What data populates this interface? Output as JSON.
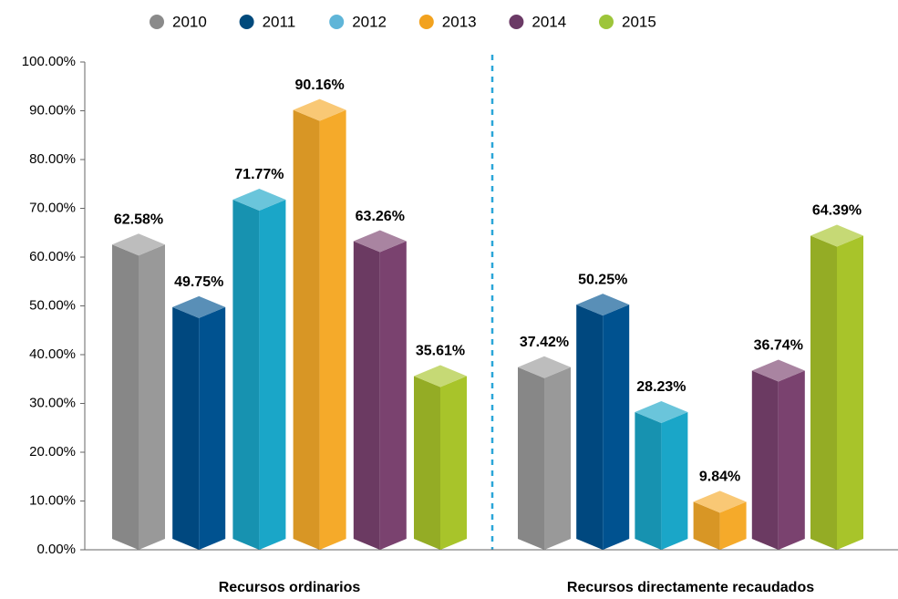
{
  "chart_data": {
    "type": "bar3d",
    "categories": [
      "Recursos ordinarios",
      "Recursos directamente recaudados"
    ],
    "series": [
      {
        "name": "2010",
        "color": "#999999",
        "values": [
          62.58,
          37.42
        ],
        "value_labels": [
          "62.58%",
          "37.42%"
        ]
      },
      {
        "name": "2011",
        "color": "#005290",
        "values": [
          49.75,
          50.25
        ],
        "value_labels": [
          "49.75%",
          "50.25%"
        ]
      },
      {
        "name": "2012",
        "color": "#1aa6c8",
        "values": [
          71.77,
          28.23
        ],
        "value_labels": [
          "71.77%",
          "28.23%"
        ]
      },
      {
        "name": "2013",
        "color": "#f5aa2a",
        "values": [
          90.16,
          9.84
        ],
        "value_labels": [
          "90.16%",
          "9.84%"
        ]
      },
      {
        "name": "2014",
        "color": "#7a426f",
        "values": [
          63.26,
          36.74
        ],
        "value_labels": [
          "63.26%",
          "36.74%"
        ]
      },
      {
        "name": "2015",
        "color": "#a8c42a",
        "values": [
          35.61,
          64.39
        ],
        "value_labels": [
          "35.61%",
          "64.39%"
        ]
      }
    ],
    "legend_colors": [
      "#8a8a8a",
      "#004a7c",
      "#5fb5d8",
      "#f2a21e",
      "#6b3a66",
      "#9dc53a"
    ],
    "ylim": [
      0,
      100
    ],
    "yticks": [
      {
        "value": 0,
        "label": "0.00%"
      },
      {
        "value": 10,
        "label": "10.00%"
      },
      {
        "value": 20,
        "label": "20.00%"
      },
      {
        "value": 30,
        "label": "30.00%"
      },
      {
        "value": 40,
        "label": "40.00%"
      },
      {
        "value": 50,
        "label": "50.00%"
      },
      {
        "value": 60,
        "label": "60.00%"
      },
      {
        "value": 70,
        "label": "70.00%"
      },
      {
        "value": 80,
        "label": "80.00%"
      },
      {
        "value": 90,
        "label": "90.00%"
      },
      {
        "value": 100,
        "label": "100.00%"
      }
    ],
    "legend": "top"
  }
}
